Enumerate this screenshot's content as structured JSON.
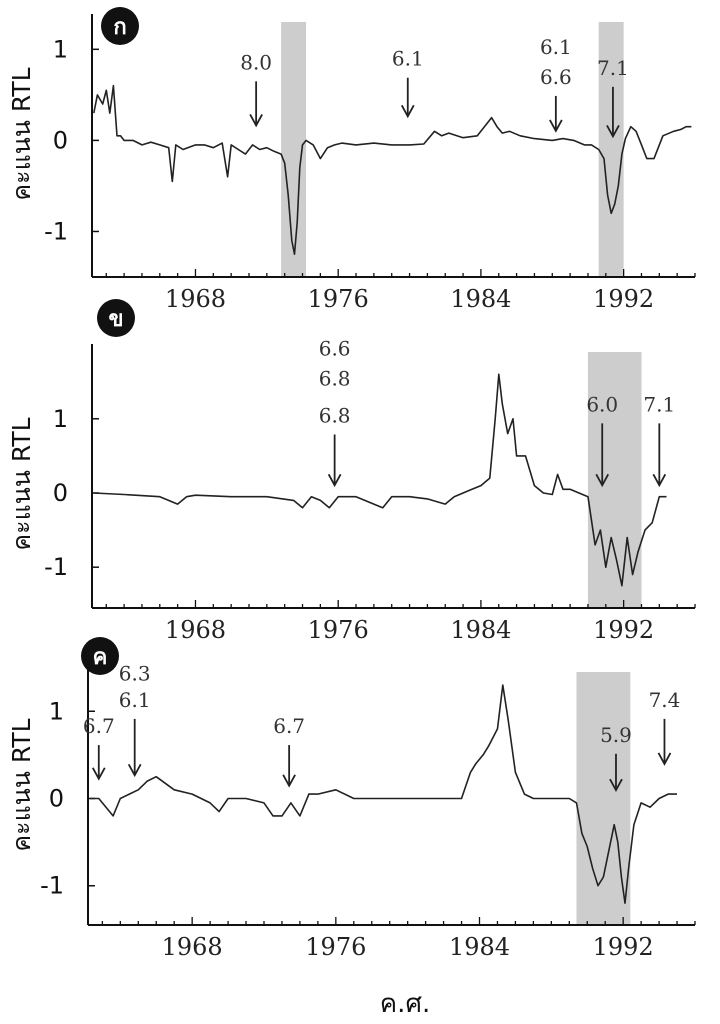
{
  "xlabel": "ค.ศ.",
  "chart_data": [
    {
      "type": "line",
      "badge": "ก",
      "ylabel": "คะแนน RTL",
      "xlim": [
        1962.2,
        1996.0
      ],
      "ylim": [
        -1.5,
        1.3
      ],
      "yticks": [
        -1,
        0,
        1
      ],
      "xticks": [
        1968,
        1976,
        1984,
        1992
      ],
      "shaded": [
        [
          1972.8,
          1974.2
        ],
        [
          1990.6,
          1992.0
        ]
      ],
      "annotations": [
        {
          "x": 1971.4,
          "text": [
            "8.0"
          ],
          "ty": [
            0.78
          ],
          "tip": 0.12
        },
        {
          "x": 1979.9,
          "text": [
            "6.1"
          ],
          "ty": [
            0.82
          ],
          "tip": 0.22
        },
        {
          "x": 1988.2,
          "text": [
            "6.1",
            "6.6"
          ],
          "ty": [
            0.95,
            0.62
          ],
          "tip": 0.06
        },
        {
          "x": 1991.4,
          "text": [
            "7.1"
          ],
          "ty": [
            0.72
          ],
          "tip": 0.0
        }
      ],
      "series": [
        {
          "x": [
            1962.3,
            1962.5,
            1962.8,
            1963.0,
            1963.2,
            1963.4,
            1963.6,
            1963.8,
            1964.0,
            1964.5,
            1965.0,
            1965.5,
            1966.0,
            1966.5,
            1966.7,
            1966.9,
            1967.3,
            1968.0,
            1968.5,
            1969.0,
            1969.5,
            1969.8,
            1970.0,
            1970.4,
            1970.8,
            1971.2,
            1971.6,
            1972.0,
            1972.4,
            1972.8,
            1973.0,
            1973.2,
            1973.4,
            1973.55,
            1973.7,
            1973.85,
            1974.0,
            1974.2,
            1974.6,
            1975.0,
            1975.4,
            1975.8,
            1976.2,
            1977.0,
            1978.0,
            1979.0,
            1980.0,
            1980.8,
            1981.4,
            1981.8,
            1982.2,
            1983.0,
            1983.8,
            1984.6,
            1984.9,
            1985.2,
            1985.6,
            1986.2,
            1987.0,
            1988.0,
            1988.6,
            1989.2,
            1989.8,
            1990.2,
            1990.6,
            1990.9,
            1991.1,
            1991.3,
            1991.5,
            1991.7,
            1991.9,
            1992.1,
            1992.4,
            1992.7,
            1993.0,
            1993.3,
            1993.7,
            1994.2,
            1994.8,
            1995.2,
            1995.5,
            1995.8
          ],
          "y": [
            0.3,
            0.5,
            0.4,
            0.55,
            0.3,
            0.6,
            0.05,
            0.05,
            0.0,
            0.0,
            -0.05,
            -0.02,
            -0.05,
            -0.08,
            -0.45,
            -0.05,
            -0.1,
            -0.05,
            -0.05,
            -0.08,
            -0.03,
            -0.4,
            -0.05,
            -0.1,
            -0.15,
            -0.05,
            -0.1,
            -0.08,
            -0.12,
            -0.15,
            -0.25,
            -0.6,
            -1.1,
            -1.25,
            -0.9,
            -0.3,
            -0.05,
            0.0,
            -0.05,
            -0.2,
            -0.08,
            -0.05,
            -0.03,
            -0.05,
            -0.03,
            -0.05,
            -0.05,
            -0.04,
            0.1,
            0.05,
            0.08,
            0.03,
            0.05,
            0.25,
            0.15,
            0.08,
            0.1,
            0.05,
            0.02,
            0.0,
            0.02,
            0.0,
            -0.05,
            -0.05,
            -0.1,
            -0.2,
            -0.6,
            -0.8,
            -0.7,
            -0.5,
            -0.15,
            0.02,
            0.15,
            0.1,
            -0.05,
            -0.2,
            -0.2,
            0.05,
            0.1,
            0.12,
            0.15,
            0.15
          ]
        }
      ]
    },
    {
      "type": "line",
      "badge": "ข",
      "ylabel": "คะแนน RTL",
      "xlim": [
        1962.2,
        1996.0
      ],
      "ylim": [
        -1.55,
        1.9
      ],
      "yticks": [
        -1,
        0,
        1
      ],
      "xticks": [
        1968,
        1976,
        1984,
        1992
      ],
      "shaded": [
        [
          1990.0,
          1993.0
        ]
      ],
      "annotations": [
        {
          "x": 1975.8,
          "text": [
            "6.6",
            "6.8",
            "6.8"
          ],
          "ty": [
            1.85,
            1.45,
            0.95
          ],
          "tip": 0.05
        },
        {
          "x": 1990.8,
          "text": [
            "6.0"
          ],
          "ty": [
            1.1
          ],
          "tip": 0.05
        },
        {
          "x": 1994.0,
          "text": [
            "7.1"
          ],
          "ty": [
            1.1
          ],
          "tip": 0.05
        }
      ],
      "series": [
        {
          "x": [
            1962.3,
            1964.0,
            1966.0,
            1967.0,
            1967.5,
            1968.0,
            1970.0,
            1972.0,
            1973.5,
            1974.0,
            1974.5,
            1975.0,
            1975.5,
            1976.0,
            1977.0,
            1978.5,
            1979.0,
            1980.0,
            1981.0,
            1982.0,
            1982.5,
            1983.0,
            1983.5,
            1984.0,
            1984.5,
            1984.8,
            1985.0,
            1985.2,
            1985.5,
            1985.8,
            1986.0,
            1986.5,
            1987.0,
            1987.5,
            1988.0,
            1988.3,
            1988.6,
            1989.0,
            1989.5,
            1990.0,
            1990.4,
            1990.7,
            1991.0,
            1991.3,
            1991.6,
            1991.9,
            1992.2,
            1992.5,
            1992.8,
            1993.2,
            1993.6,
            1994.0,
            1994.4
          ],
          "y": [
            0.0,
            -0.02,
            -0.05,
            -0.15,
            -0.05,
            -0.03,
            -0.05,
            -0.05,
            -0.1,
            -0.2,
            -0.05,
            -0.1,
            -0.2,
            -0.05,
            -0.05,
            -0.2,
            -0.05,
            -0.05,
            -0.08,
            -0.15,
            -0.05,
            0.0,
            0.05,
            0.1,
            0.2,
            1.0,
            1.6,
            1.2,
            0.8,
            1.0,
            0.5,
            0.5,
            0.1,
            0.0,
            -0.02,
            0.25,
            0.05,
            0.05,
            0.0,
            -0.05,
            -0.7,
            -0.5,
            -1.0,
            -0.6,
            -0.9,
            -1.25,
            -0.6,
            -1.1,
            -0.8,
            -0.5,
            -0.4,
            -0.05,
            -0.05
          ]
        }
      ]
    },
    {
      "type": "line",
      "badge": "ค",
      "ylabel": "คะแนน RTL",
      "xlim": [
        1962.2,
        1996.0
      ],
      "ylim": [
        -1.45,
        1.45
      ],
      "yticks": [
        -1,
        0,
        1
      ],
      "xticks": [
        1968,
        1976,
        1984,
        1992
      ],
      "shaded": [
        [
          1989.4,
          1992.4
        ]
      ],
      "annotations": [
        {
          "x": 1962.8,
          "text": [
            "6.7"
          ],
          "ty": [
            0.75
          ],
          "tip": 0.18
        },
        {
          "x": 1964.8,
          "text": [
            "6.3",
            "6.1"
          ],
          "ty": [
            1.35,
            1.05
          ],
          "tip": 0.22
        },
        {
          "x": 1973.4,
          "text": [
            "6.7"
          ],
          "ty": [
            0.75
          ],
          "tip": 0.1
        },
        {
          "x": 1991.6,
          "text": [
            "5.9"
          ],
          "ty": [
            0.65
          ],
          "tip": 0.05
        },
        {
          "x": 1994.3,
          "text": [
            "7.4"
          ],
          "ty": [
            1.05
          ],
          "tip": 0.35
        }
      ],
      "series": [
        {
          "x": [
            1962.3,
            1962.8,
            1963.2,
            1963.6,
            1964.0,
            1964.5,
            1965.0,
            1965.5,
            1966.0,
            1967.0,
            1968.0,
            1969.0,
            1969.5,
            1970.0,
            1971.0,
            1972.0,
            1972.5,
            1973.0,
            1973.5,
            1974.0,
            1974.5,
            1975.0,
            1976.0,
            1977.0,
            1978.0,
            1979.0,
            1980.0,
            1981.0,
            1982.0,
            1983.0,
            1983.5,
            1983.8,
            1984.2,
            1984.5,
            1985.0,
            1985.3,
            1985.6,
            1986.0,
            1986.5,
            1987.0,
            1988.0,
            1989.0,
            1989.4,
            1989.7,
            1990.0,
            1990.3,
            1990.6,
            1990.9,
            1991.2,
            1991.5,
            1991.7,
            1991.9,
            1992.1,
            1992.3,
            1992.6,
            1993.0,
            1993.5,
            1994.0,
            1994.5,
            1995.0
          ],
          "y": [
            0.0,
            0.0,
            -0.1,
            -0.2,
            0.0,
            0.05,
            0.1,
            0.2,
            0.25,
            0.1,
            0.05,
            -0.05,
            -0.15,
            0.0,
            0.0,
            -0.05,
            -0.2,
            -0.2,
            -0.05,
            -0.2,
            0.05,
            0.05,
            0.1,
            0.0,
            0.0,
            0.0,
            0.0,
            0.0,
            0.0,
            0.0,
            0.3,
            0.4,
            0.5,
            0.6,
            0.8,
            1.3,
            0.9,
            0.3,
            0.05,
            0.0,
            0.0,
            0.0,
            -0.05,
            -0.4,
            -0.55,
            -0.8,
            -1.0,
            -0.9,
            -0.6,
            -0.3,
            -0.5,
            -0.9,
            -1.2,
            -0.8,
            -0.3,
            -0.05,
            -0.1,
            0.0,
            0.05,
            0.05
          ]
        }
      ]
    }
  ]
}
